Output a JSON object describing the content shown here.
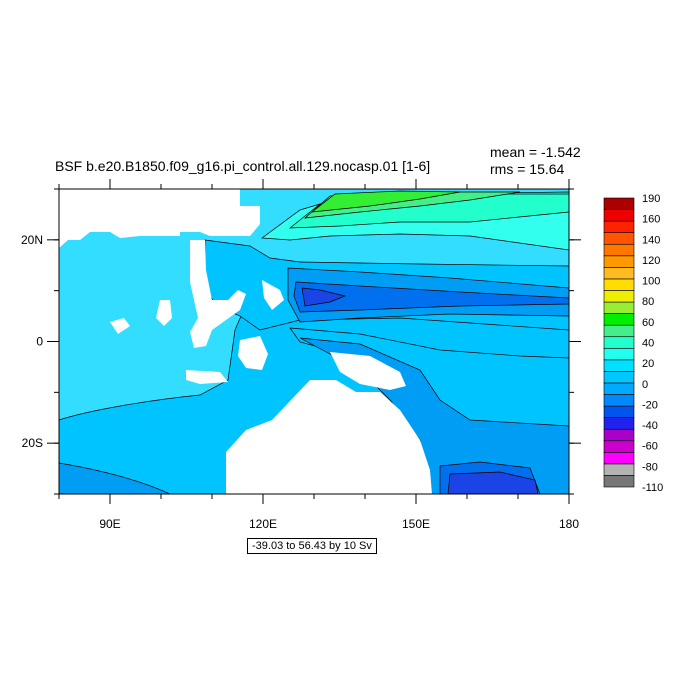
{
  "title": "BSF b.e20.B1850.f09_g16.pi_control.all.129.nocasp.01 [1-6]",
  "stats": {
    "mean": "mean = -1.542",
    "rms": "rms = 15.64"
  },
  "contour_info": "-39.03 to 56.43 by 10 Sv",
  "chart_data": {
    "type": "heatmap",
    "title": "BSF b.e20.B1850.f09_g16.pi_control.all.129.nocasp.01 [1-6]",
    "variable": "BSF",
    "units": "Sv",
    "mean": -1.542,
    "rms": 15.64,
    "contour_min": -39.03,
    "contour_max": 56.43,
    "contour_interval": 10,
    "xlim": [
      80,
      180
    ],
    "ylim": [
      -30,
      30
    ],
    "x_ticks": [
      {
        "value": 90,
        "label": "90E"
      },
      {
        "value": 120,
        "label": "120E"
      },
      {
        "value": 150,
        "label": "150E"
      },
      {
        "value": 180,
        "label": "180"
      }
    ],
    "y_ticks": [
      {
        "value": 20,
        "label": "20N"
      },
      {
        "value": 0,
        "label": "0"
      },
      {
        "value": -20,
        "label": "20S"
      }
    ],
    "colorbar": {
      "colors": [
        "#777777",
        "#b4b4b4",
        "#ff00ff",
        "#cc00cc",
        "#aa00cc",
        "#2222ee",
        "#0055ee",
        "#0088ff",
        "#00aaff",
        "#00c8ff",
        "#00e0ff",
        "#22ffee",
        "#22ffcc",
        "#44ee88",
        "#00ee00",
        "#99ee33",
        "#eeee00",
        "#ffdd00",
        "#ffbb22",
        "#ff9900",
        "#ff7700",
        "#ff5500",
        "#ff2200",
        "#ee0000",
        "#aa0000"
      ],
      "labels": [
        {
          "value": 190,
          "label": "190"
        },
        {
          "value": 160,
          "label": "160"
        },
        {
          "value": 140,
          "label": "140"
        },
        {
          "value": 120,
          "label": "120"
        },
        {
          "value": 100,
          "label": "100"
        },
        {
          "value": 80,
          "label": "80"
        },
        {
          "value": 60,
          "label": "60"
        },
        {
          "value": 40,
          "label": "40"
        },
        {
          "value": 20,
          "label": "20"
        },
        {
          "value": 0,
          "label": "0"
        },
        {
          "value": -20,
          "label": "-20"
        },
        {
          "value": -40,
          "label": "-40"
        },
        {
          "value": -60,
          "label": "-60"
        },
        {
          "value": -80,
          "label": "-80"
        },
        {
          "value": -110,
          "label": "-110"
        }
      ]
    },
    "field_colors": {
      "ocean_base": "#33ddff",
      "level_0": "#00ddff",
      "level_m10": "#00c4ff",
      "level_m20": "#009df5",
      "level_m30": "#0070ee",
      "level_m40": "#1a44e6",
      "level_10": "#33ffee",
      "level_20": "#22ffcc",
      "level_30": "#44ee88",
      "level_40": "#33ee33",
      "land": "#ffffff"
    }
  }
}
